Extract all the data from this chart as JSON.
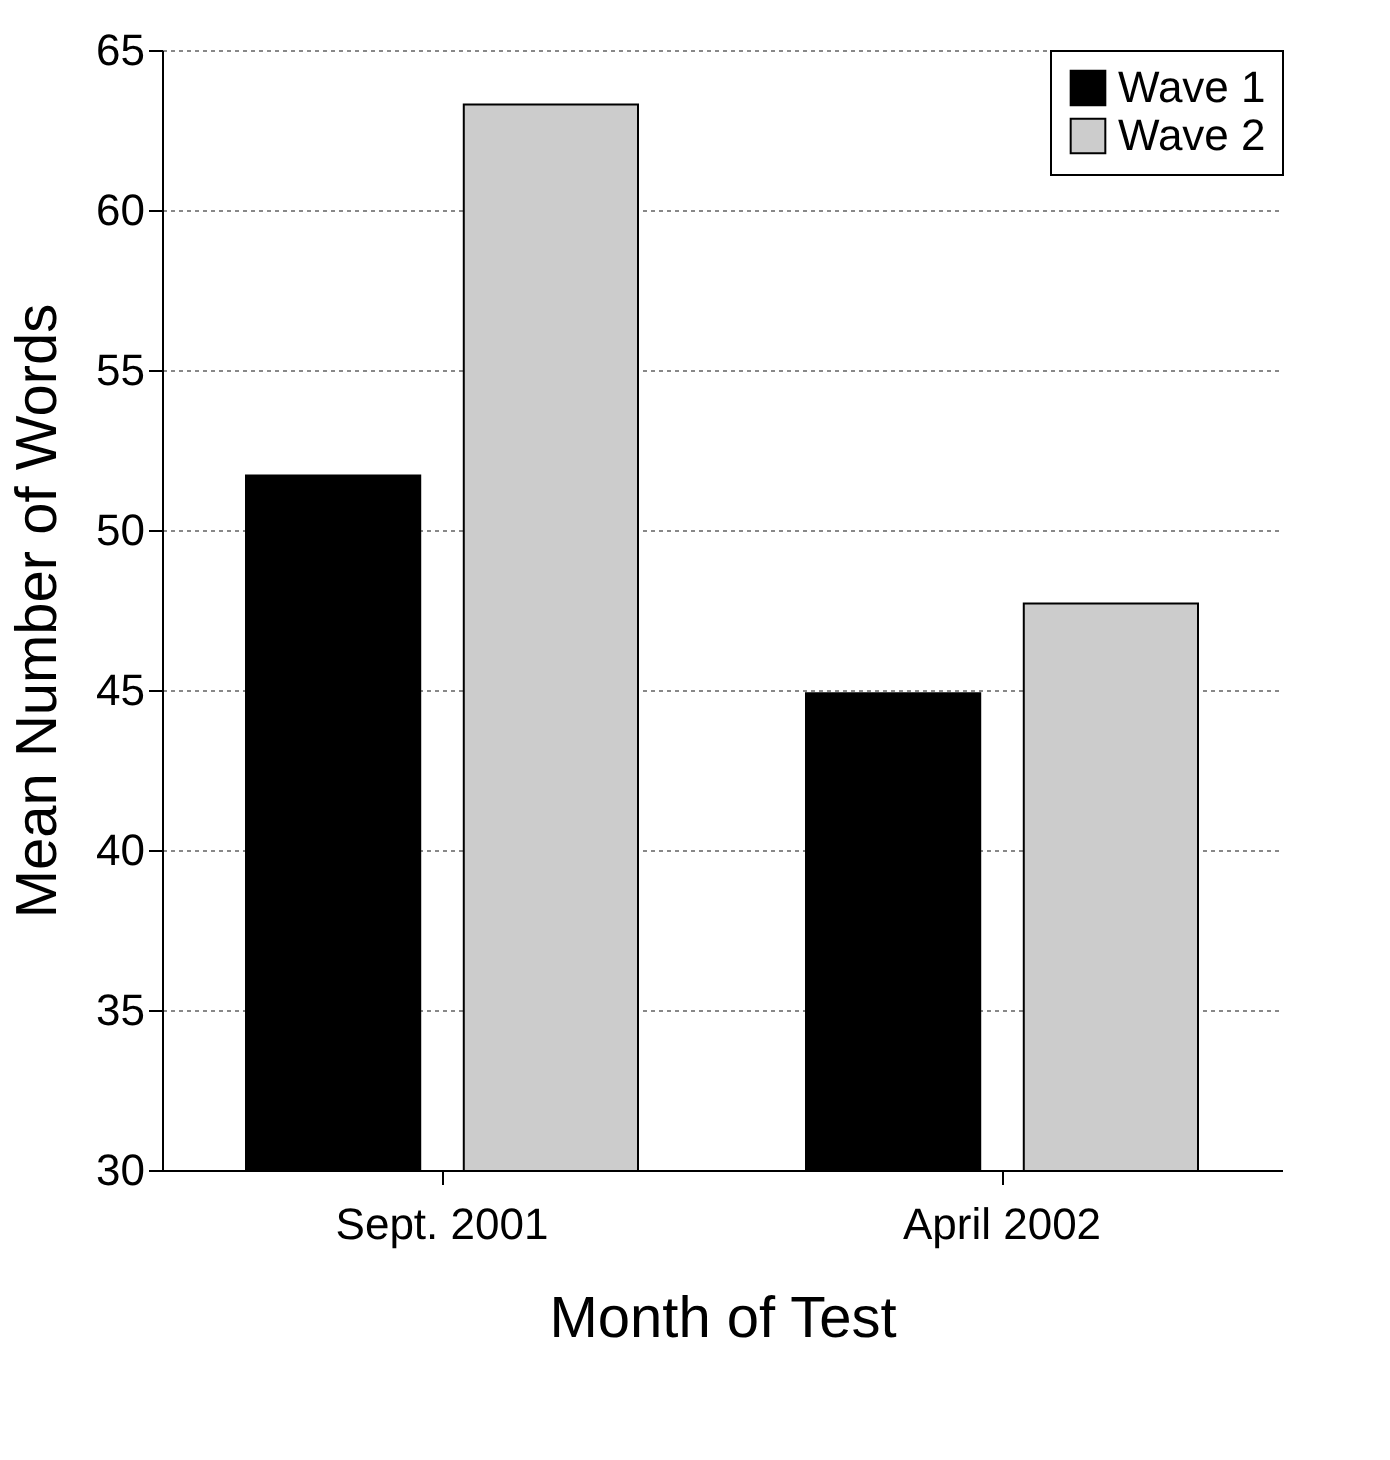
{
  "chart_data": {
    "type": "bar",
    "xlabel": "Month of Test",
    "ylabel": "Mean Number of Words",
    "categories": [
      "Sept. 2001",
      "April 2002"
    ],
    "series": [
      {
        "name": "Wave 1",
        "color": "#000000",
        "values": [
          51.7,
          44.9
        ]
      },
      {
        "name": "Wave 2",
        "color": "#cccccc",
        "values": [
          63.3,
          47.7
        ]
      }
    ],
    "ylim": [
      30,
      65
    ],
    "yticks": [
      30,
      35,
      40,
      45,
      50,
      55,
      60,
      65
    ],
    "grid": "y",
    "legend": "top right"
  }
}
